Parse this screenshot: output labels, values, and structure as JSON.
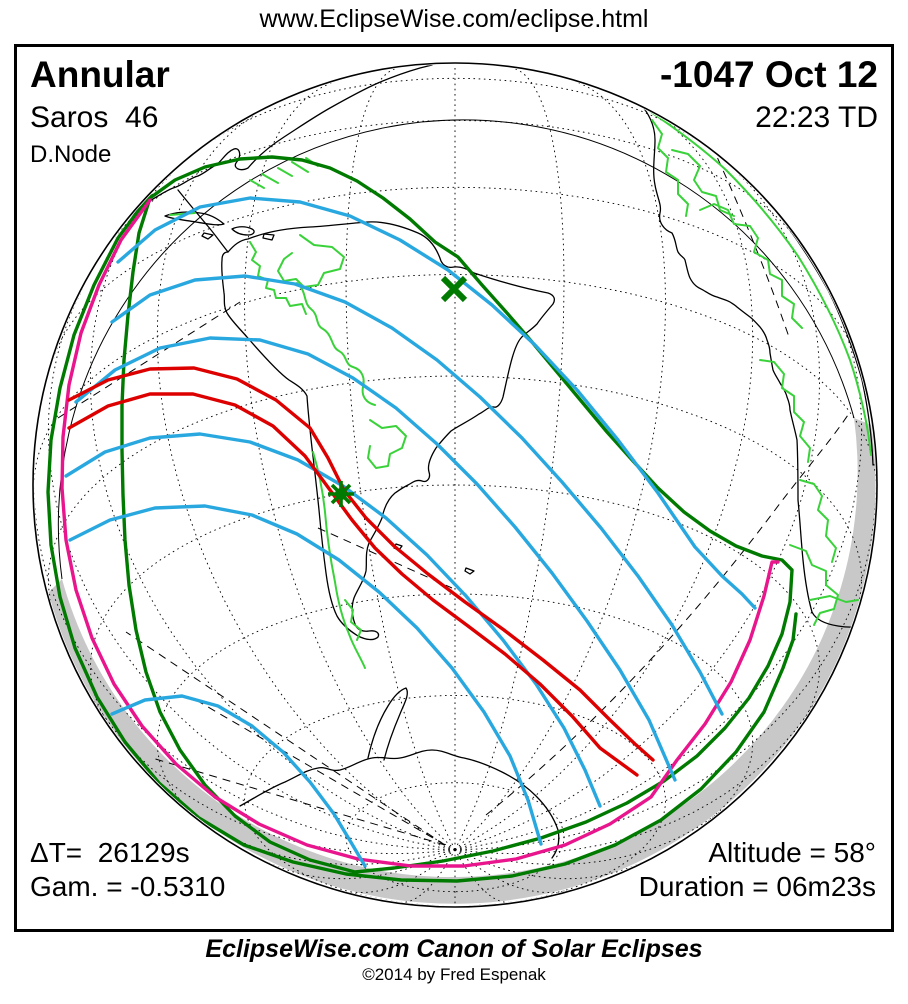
{
  "header": {
    "url": "www.EclipseWise.com/eclipse.html"
  },
  "map_panel": {
    "top_left": {
      "eclipse_type": "Annular",
      "saros": "Saros  46",
      "node": "D.Node"
    },
    "top_right": {
      "date": "-1047 Oct 12",
      "time": "22:23 TD"
    },
    "bottom_left": {
      "delta_t": "ΔT=  26129s",
      "gamma": "Gam. = -0.5310"
    },
    "bottom_right": {
      "altitude": "Altitude = 58°",
      "duration": "Duration = 06m23s"
    },
    "markers": {
      "greatest_eclipse": "asterisk-marker",
      "sub_solar_point": "x-marker"
    }
  },
  "footer": {
    "title": "EclipseWise.com Canon of Solar Eclipses",
    "copyright": "©2014 by Fred Espenak"
  },
  "colors": {
    "penumbra_limit_green": "#007a00",
    "border_green": "#3ad23a",
    "magnitude_blue": "#29a8e0",
    "central_path_red": "#dd0000",
    "sunrise_sunset_magenta": "#e8158d",
    "night_shade_gray": "#c8c8c8",
    "coast_black": "#000000"
  }
}
